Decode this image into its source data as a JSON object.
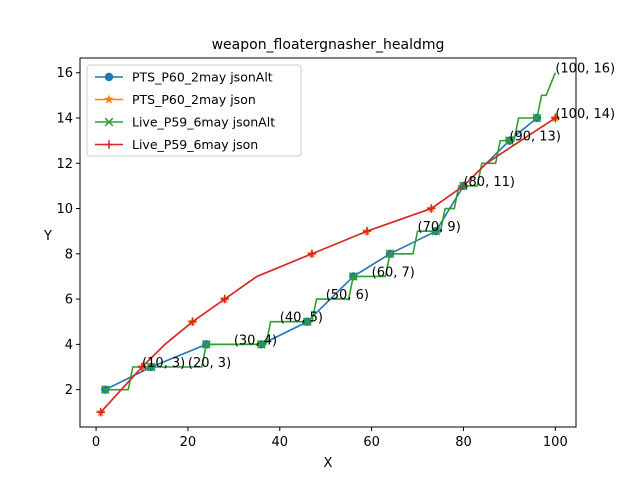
{
  "chart_data": {
    "type": "line",
    "title": "weapon_floatergnasher_healdmg",
    "xlabel": "X",
    "ylabel": "Y",
    "xlim": [
      -3.5,
      104.5
    ],
    "ylim": [
      0.35,
      16.65
    ],
    "xticks": [
      0,
      20,
      40,
      60,
      80,
      100
    ],
    "yticks": [
      2,
      4,
      6,
      8,
      10,
      12,
      14,
      16
    ],
    "grid": false,
    "legend_position": "top-left",
    "series": [
      {
        "name": "PTS_P60_2may jsonAlt",
        "color": "#1f77b4",
        "marker": "circle",
        "line_points": [
          [
            2,
            2
          ],
          [
            12,
            3
          ],
          [
            24,
            4
          ],
          [
            36,
            4
          ],
          [
            46,
            5
          ],
          [
            56,
            7
          ],
          [
            64,
            8
          ],
          [
            74,
            9
          ],
          [
            80,
            11
          ],
          [
            90,
            13
          ],
          [
            96,
            14
          ]
        ],
        "marker_points": [
          [
            2,
            2
          ],
          [
            12,
            3
          ],
          [
            24,
            4
          ],
          [
            36,
            4
          ],
          [
            46,
            5
          ],
          [
            56,
            7
          ],
          [
            64,
            8
          ],
          [
            74,
            9
          ],
          [
            80,
            11
          ],
          [
            90,
            13
          ],
          [
            96,
            14
          ]
        ]
      },
      {
        "name": "PTS_P60_2may json",
        "color": "#ff7f0e",
        "marker": "star",
        "line_points": [
          [
            1,
            1
          ],
          [
            10,
            3
          ],
          [
            15,
            4
          ],
          [
            21,
            5
          ],
          [
            28,
            6
          ],
          [
            35,
            7
          ],
          [
            47,
            8
          ],
          [
            59,
            9
          ],
          [
            73,
            10
          ],
          [
            80,
            11
          ],
          [
            85,
            12
          ],
          [
            100,
            14
          ]
        ],
        "marker_points": [
          [
            1,
            1
          ],
          [
            10,
            3
          ],
          [
            21,
            5
          ],
          [
            28,
            6
          ],
          [
            47,
            8
          ],
          [
            59,
            9
          ],
          [
            73,
            10
          ],
          [
            100,
            14
          ]
        ]
      },
      {
        "name": "Live_P59_6may jsonAlt",
        "color": "#2ca02c",
        "marker": "x",
        "line_points": [
          [
            2,
            2
          ],
          [
            3,
            2
          ],
          [
            7,
            2
          ],
          [
            8,
            3
          ],
          [
            11,
            3
          ],
          [
            12,
            3
          ],
          [
            22,
            3
          ],
          [
            23,
            3
          ],
          [
            24,
            4
          ],
          [
            36,
            4
          ],
          [
            37,
            4
          ],
          [
            38,
            5
          ],
          [
            45,
            5
          ],
          [
            46,
            5
          ],
          [
            47,
            5
          ],
          [
            48,
            6
          ],
          [
            54,
            6
          ],
          [
            55,
            6
          ],
          [
            56,
            7
          ],
          [
            61,
            7
          ],
          [
            62,
            7
          ],
          [
            63,
            7
          ],
          [
            64,
            8
          ],
          [
            68,
            8
          ],
          [
            69,
            8
          ],
          [
            70,
            9
          ],
          [
            73,
            9
          ],
          [
            74,
            9
          ],
          [
            75,
            9
          ],
          [
            76,
            10
          ],
          [
            77,
            10
          ],
          [
            78,
            10
          ],
          [
            79,
            11
          ],
          [
            80,
            11
          ],
          [
            81,
            11
          ],
          [
            82,
            11
          ],
          [
            83,
            11
          ],
          [
            84,
            12
          ],
          [
            85,
            12
          ],
          [
            86,
            12
          ],
          [
            87,
            12
          ],
          [
            88,
            13
          ],
          [
            89,
            13
          ],
          [
            90,
            13
          ],
          [
            91,
            13
          ],
          [
            92,
            14
          ],
          [
            93,
            14
          ],
          [
            94,
            14
          ],
          [
            95,
            14
          ],
          [
            96,
            14
          ],
          [
            97,
            15
          ],
          [
            98,
            15
          ],
          [
            99,
            15.5
          ],
          [
            100,
            16
          ]
        ],
        "marker_points": [
          [
            2,
            2
          ],
          [
            12,
            3
          ],
          [
            24,
            4
          ],
          [
            36,
            4
          ],
          [
            46,
            5
          ],
          [
            56,
            7
          ],
          [
            64,
            8
          ],
          [
            74,
            9
          ],
          [
            80,
            11
          ],
          [
            90,
            13
          ],
          [
            96,
            14
          ]
        ]
      },
      {
        "name": "Live_P59_6may json",
        "color": "#d62728",
        "marker": "plus",
        "line_points": [
          [
            1,
            1
          ],
          [
            10,
            3
          ],
          [
            15,
            4
          ],
          [
            21,
            5
          ],
          [
            28,
            6
          ],
          [
            35,
            7
          ],
          [
            47,
            8
          ],
          [
            59,
            9
          ],
          [
            73,
            10
          ],
          [
            80,
            11
          ],
          [
            85,
            12
          ],
          [
            100,
            14
          ]
        ],
        "marker_points": [
          [
            1,
            1
          ],
          [
            10,
            3
          ],
          [
            21,
            5
          ],
          [
            28,
            6
          ],
          [
            47,
            8
          ],
          [
            59,
            9
          ],
          [
            73,
            10
          ],
          [
            100,
            14
          ]
        ]
      }
    ],
    "annotations": [
      {
        "x": 10,
        "y": 3,
        "text": "(10, 3)"
      },
      {
        "x": 20,
        "y": 3,
        "text": "(20, 3)"
      },
      {
        "x": 30,
        "y": 4,
        "text": "(30, 4)"
      },
      {
        "x": 40,
        "y": 5,
        "text": "(40, 5)"
      },
      {
        "x": 50,
        "y": 6,
        "text": "(50, 6)"
      },
      {
        "x": 60,
        "y": 7,
        "text": "(60, 7)"
      },
      {
        "x": 70,
        "y": 9,
        "text": "(70, 9)"
      },
      {
        "x": 80,
        "y": 11,
        "text": "(80, 11)"
      },
      {
        "x": 90,
        "y": 13,
        "text": "(90, 13)"
      },
      {
        "x": 100,
        "y": 14,
        "text": "(100, 14)"
      },
      {
        "x": 100,
        "y": 16,
        "text": "(100, 16)"
      }
    ]
  }
}
